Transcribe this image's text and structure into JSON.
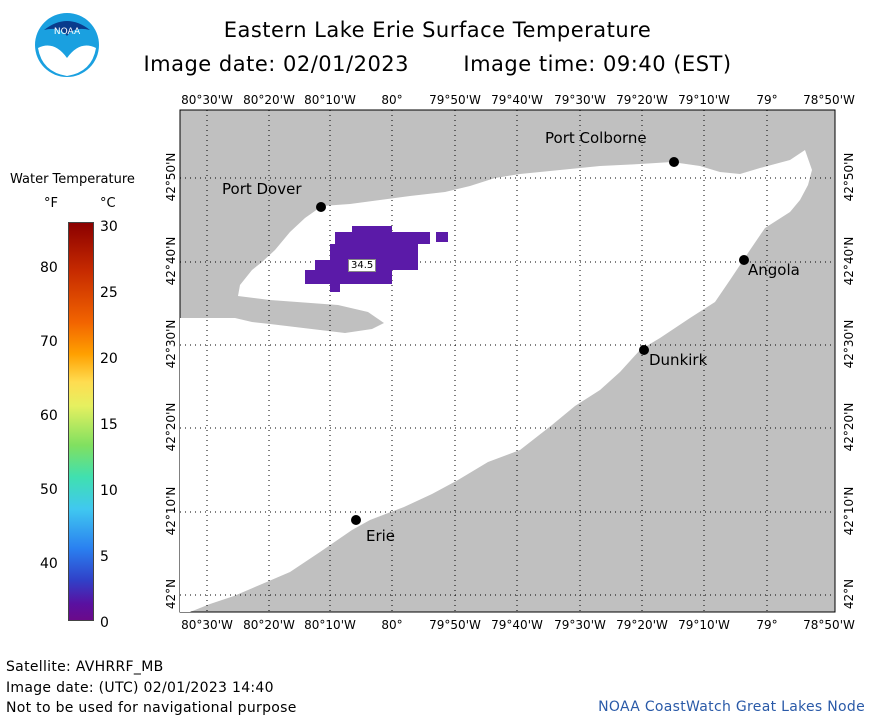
{
  "header": {
    "title": "Eastern Lake Erie Surface Temperature",
    "image_date_line": "Image date: 02/01/2023",
    "image_time_line": "Image time: 09:40 (EST)"
  },
  "logo": {
    "text": "NOAA"
  },
  "axes": {
    "lon_ticks": [
      "80°30'W",
      "80°20'W",
      "80°10'W",
      "80°",
      "79°50'W",
      "79°40'W",
      "79°30'W",
      "79°20'W",
      "79°10'W",
      "79°",
      "78°50'W"
    ],
    "lat_ticks": [
      "42°50'N",
      "42°40'N",
      "42°30'N",
      "42°20'N",
      "42°10'N",
      "42°N"
    ]
  },
  "cities": {
    "port_colborne": "Port Colborne",
    "port_dover": "Port Dover",
    "angola": "Angola",
    "dunkirk": "Dunkirk",
    "erie": "Erie"
  },
  "temperature_label": "34.5",
  "legend": {
    "title": "Water Temperature",
    "unit_f": "°F",
    "unit_c": "°C",
    "fahrenheit": [
      "80",
      "70",
      "60",
      "50",
      "40"
    ],
    "celsius": [
      "30",
      "25",
      "20",
      "15",
      "10",
      "5",
      "0"
    ]
  },
  "footer": {
    "satellite": "Satellite: AVHRRF_MB",
    "utc_date": "Image date: (UTC) 02/01/2023  14:40",
    "warning": "Not to be used for navigational purpose",
    "credit": "NOAA CoastWatch Great Lakes Node"
  },
  "colors": {
    "land": "#c0c0c0",
    "water": "#ffffff",
    "ice_purple": "#5b1aa8",
    "credit_blue": "#2a5aa8"
  }
}
